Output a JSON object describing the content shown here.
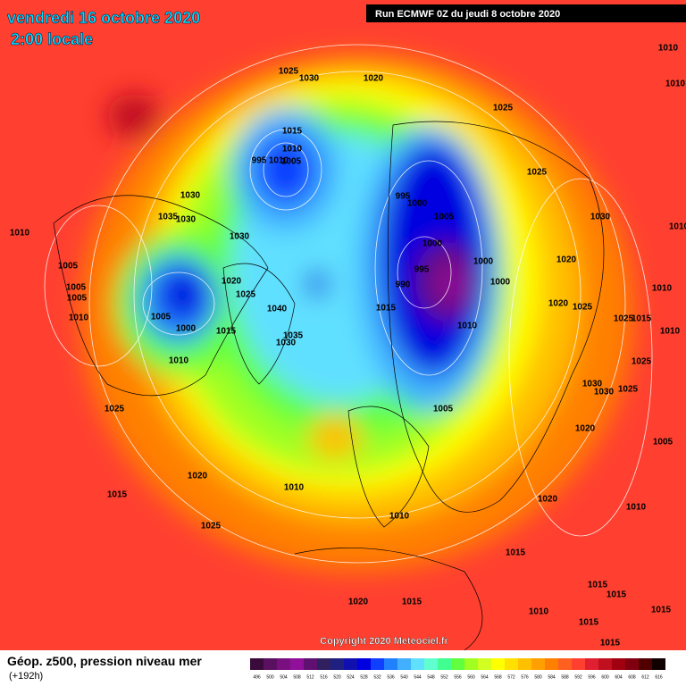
{
  "header": {
    "title": "vendredi 16 octobre 2020",
    "subtitle": "2:00 locale",
    "run": "Run ECMWF 0Z du jeudi 8 octobre 2020"
  },
  "copyright": "Copyright 2020 Meteociel.fr",
  "footer": {
    "title": "Géop. z500, pression niveau mer",
    "lead": "(+192h)"
  },
  "scale": {
    "values": [
      496,
      500,
      504,
      508,
      512,
      516,
      520,
      524,
      528,
      532,
      536,
      540,
      544,
      548,
      552,
      556,
      560,
      564,
      568,
      572,
      576,
      580,
      584,
      588,
      592,
      596,
      600,
      604,
      608,
      612,
      616
    ],
    "colors": [
      "#3a0a3a",
      "#5a1060",
      "#7a1080",
      "#90109a",
      "#601070",
      "#302060",
      "#202080",
      "#1010b0",
      "#0000e0",
      "#1040ff",
      "#2080ff",
      "#40b0ff",
      "#60e0ff",
      "#60ffd0",
      "#40ff90",
      "#60ff40",
      "#a0ff20",
      "#d0ff20",
      "#ffff00",
      "#ffe000",
      "#ffc000",
      "#ffa000",
      "#ff8000",
      "#ff6020",
      "#ff4030",
      "#e02030",
      "#c01020",
      "#a00010",
      "#800010",
      "#500000",
      "#100000"
    ]
  },
  "isobar_labels": [
    "1025",
    "1030",
    "1020",
    "1010",
    "1010",
    "1025",
    "1015",
    "1010",
    "995",
    "1010",
    "1005",
    "1025",
    "1030",
    "995",
    "1000",
    "1035",
    "1030",
    "1005",
    "1030",
    "1010",
    "1030",
    "1000",
    "1010",
    "1020",
    "1000",
    "995",
    "1005",
    "1020",
    "1000",
    "990",
    "1025",
    "1005",
    "1010",
    "1005",
    "1020",
    "1015",
    "1040",
    "1025",
    "1025",
    "1015",
    "1010",
    "1005",
    "1000",
    "1015",
    "1010",
    "1035",
    "1030",
    "1010",
    "1010",
    "1025",
    "1030",
    "1030",
    "1025",
    "1025",
    "1005",
    "1020",
    "1005",
    "1020",
    "1010",
    "1020",
    "1015",
    "1010",
    "1010",
    "1025",
    "1015",
    "1015",
    "1015",
    "1010",
    "1020",
    "1015",
    "1015",
    "1015",
    "1015"
  ]
}
